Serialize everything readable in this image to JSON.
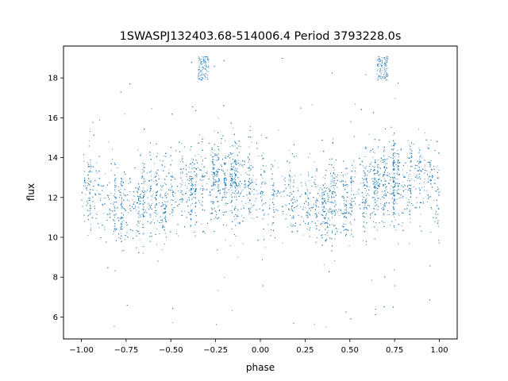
{
  "chart_data": {
    "type": "scatter",
    "title": "1SWASPJ132403.68-514006.4 Period 3793228.0s",
    "xlabel": "phase",
    "ylabel": "flux",
    "xlim": [
      -1.1,
      1.1
    ],
    "ylim": [
      4.9,
      19.6
    ],
    "xticks": [
      -1.0,
      -0.75,
      -0.5,
      -0.25,
      0.0,
      0.25,
      0.5,
      0.75,
      1.0
    ],
    "xtick_labels": [
      "−1.00",
      "−0.75",
      "−0.50",
      "−0.25",
      "0.00",
      "0.25",
      "0.50",
      "0.75",
      "1.00"
    ],
    "yticks": [
      6,
      8,
      10,
      12,
      14,
      16,
      18
    ],
    "ytick_labels": [
      "6",
      "8",
      "10",
      "12",
      "14",
      "16",
      "18"
    ],
    "grid": false,
    "legend": null,
    "point_color": "#1f77b4",
    "series": [
      {
        "description_of_distribution": "dense cloud of points, x from -1.00 to 1.00 (phase repeated twice), y mostly 10-15 centered near 12-13, with vertical streaks, scattered outliers from about 5.5 up to 19.1",
        "x_range": [
          -1.0,
          1.0
        ],
        "core_y_range": [
          10.0,
          15.0
        ],
        "median_y": 12.3,
        "min_y": 5.5,
        "max_y": 19.1,
        "saturated_clusters_at_y": 19.1,
        "saturated_cluster_phases": [
          -0.32,
          0.68
        ],
        "sample_points": [
          [
            -0.98,
            12.6
          ],
          [
            -0.95,
            13.8
          ],
          [
            -0.92,
            11.2
          ],
          [
            -0.9,
            15.9
          ],
          [
            -0.87,
            10.4
          ],
          [
            -0.85,
            14.8
          ],
          [
            -0.82,
            12.1
          ],
          [
            -0.8,
            13.5
          ],
          [
            -0.78,
            9.8
          ],
          [
            -0.76,
            16.2
          ],
          [
            -0.73,
            12.9
          ],
          [
            -0.7,
            11.6
          ],
          [
            -0.67,
            14.2
          ],
          [
            -0.64,
            12.3
          ],
          [
            -0.6,
            10.9
          ],
          [
            -0.57,
            13.1
          ],
          [
            -0.53,
            11.8
          ],
          [
            -0.5,
            12.5
          ],
          [
            -0.47,
            10.2
          ],
          [
            -0.44,
            13.9
          ],
          [
            -0.4,
            12.0
          ],
          [
            -0.36,
            11.1
          ],
          [
            -0.33,
            18.8
          ],
          [
            -0.3,
            12.7
          ],
          [
            -0.27,
            14.5
          ],
          [
            -0.23,
            11.4
          ],
          [
            -0.2,
            12.2
          ],
          [
            -0.17,
            9.6
          ],
          [
            -0.13,
            13.3
          ],
          [
            -0.1,
            12.4
          ],
          [
            -0.06,
            11.9
          ],
          [
            -0.03,
            12.8
          ],
          [
            0.0,
            12.2
          ],
          [
            0.03,
            13.6
          ],
          [
            0.07,
            11.5
          ],
          [
            0.1,
            15.4
          ],
          [
            0.13,
            12.9
          ],
          [
            0.17,
            10.7
          ],
          [
            0.2,
            14.1
          ],
          [
            0.23,
            12.6
          ],
          [
            0.26,
            11.0
          ],
          [
            0.3,
            13.8
          ],
          [
            0.33,
            12.1
          ],
          [
            0.37,
            10.5
          ],
          [
            0.4,
            12.9
          ],
          [
            0.43,
            11.3
          ],
          [
            0.47,
            12.4
          ],
          [
            0.5,
            10.1
          ],
          [
            0.53,
            13.5
          ],
          [
            0.57,
            11.9
          ],
          [
            0.6,
            12.6
          ],
          [
            0.63,
            10.8
          ],
          [
            0.67,
            18.9
          ],
          [
            0.7,
            12.2
          ],
          [
            0.73,
            14.6
          ],
          [
            0.77,
            11.2
          ],
          [
            0.8,
            12.4
          ],
          [
            0.83,
            9.7
          ],
          [
            0.87,
            13.1
          ],
          [
            0.9,
            12.5
          ],
          [
            0.93,
            11.8
          ],
          [
            0.97,
            12.9
          ],
          [
            1.0,
            12.3
          ]
        ]
      }
    ]
  }
}
